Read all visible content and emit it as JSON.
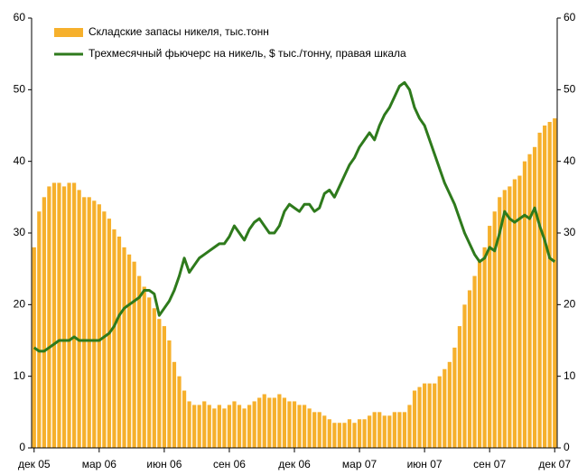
{
  "chart_data": {
    "type": "bar_line",
    "categories": [
      "дек 05",
      null,
      null,
      null,
      null,
      null,
      null,
      null,
      null,
      null,
      null,
      null,
      null,
      "мар 06",
      null,
      null,
      null,
      null,
      null,
      null,
      null,
      null,
      null,
      null,
      null,
      null,
      "июн 06",
      null,
      null,
      null,
      null,
      null,
      null,
      null,
      null,
      null,
      null,
      null,
      null,
      "сен 06",
      null,
      null,
      null,
      null,
      null,
      null,
      null,
      null,
      null,
      null,
      null,
      null,
      "дек 06",
      null,
      null,
      null,
      null,
      null,
      null,
      null,
      null,
      null,
      null,
      null,
      null,
      "мар 07",
      null,
      null,
      null,
      null,
      null,
      null,
      null,
      null,
      null,
      null,
      null,
      null,
      "июн 07",
      null,
      null,
      null,
      null,
      null,
      null,
      null,
      null,
      null,
      null,
      null,
      null,
      "сен 07",
      null,
      null,
      null,
      null,
      null,
      null,
      null,
      null,
      null,
      null,
      null,
      null,
      "дек 07"
    ],
    "series": [
      {
        "name": "Складские запасы никеля, тыс.тонн",
        "type": "bar",
        "color": "#f6b02c",
        "axis": "y",
        "values": [
          28,
          33,
          35,
          36.5,
          37,
          37,
          36.5,
          37,
          37,
          36,
          35,
          35,
          34.5,
          34,
          33,
          32,
          30.5,
          29.5,
          28,
          27,
          26,
          24,
          22.5,
          21,
          19.5,
          18,
          17,
          15,
          12,
          10,
          8,
          6.5,
          6,
          6,
          6.5,
          6,
          5.5,
          6,
          5.5,
          6,
          6.5,
          6,
          5.5,
          6,
          6.5,
          7,
          7.5,
          7,
          7,
          7.5,
          7,
          6.5,
          6.5,
          6,
          6,
          5.5,
          5,
          5,
          4.5,
          4,
          3.5,
          3.5,
          3.5,
          4,
          3.5,
          4,
          4,
          4.5,
          5,
          5,
          4.5,
          4.5,
          5,
          5,
          5,
          6,
          8,
          8.5,
          9,
          9,
          9,
          10,
          11,
          12,
          14,
          17,
          20,
          22,
          24,
          26,
          28,
          31,
          33,
          35,
          36,
          36.5,
          37.5,
          38,
          40,
          41,
          42,
          44,
          45,
          45.5,
          46
        ]
      },
      {
        "name": "Трехмесячный фьючерс на никель, $ тыс./тонну, правая шкала",
        "type": "line",
        "color": "#2e7a1c",
        "axis": "y2",
        "values": [
          14,
          13.5,
          13.5,
          14,
          14.5,
          15,
          15,
          15,
          15.5,
          15,
          15,
          15,
          15,
          15,
          15.5,
          16,
          17,
          18.5,
          19.5,
          20,
          20.5,
          21,
          22,
          22,
          21.5,
          18.5,
          19.5,
          20.5,
          22,
          24,
          26.5,
          24.5,
          25.5,
          26.5,
          27,
          27.5,
          28,
          28.5,
          28.5,
          29.5,
          31,
          30,
          29,
          30.5,
          31.5,
          32,
          31,
          30,
          30,
          31,
          33,
          34,
          33.5,
          33,
          34,
          34,
          33,
          33.5,
          35.5,
          36,
          35,
          36.5,
          38,
          39.5,
          40.5,
          42,
          43,
          44,
          43,
          45,
          46.5,
          47.5,
          49,
          50.5,
          51,
          50,
          47.5,
          46,
          45,
          43,
          41,
          39,
          37,
          35.5,
          34,
          32,
          30,
          28.5,
          27,
          26,
          26.5,
          28,
          27.5,
          30,
          33,
          32,
          31.5,
          32,
          32.5,
          32,
          33.5,
          31,
          29,
          26.5,
          26
        ]
      }
    ],
    "ylim": [
      0,
      60
    ],
    "yticks": [
      0,
      10,
      20,
      30,
      40,
      50,
      60
    ],
    "y2lim": [
      0,
      60
    ],
    "y2ticks": [
      0,
      10,
      20,
      30,
      40,
      50,
      60
    ],
    "legend": "upper left",
    "grid": false
  }
}
